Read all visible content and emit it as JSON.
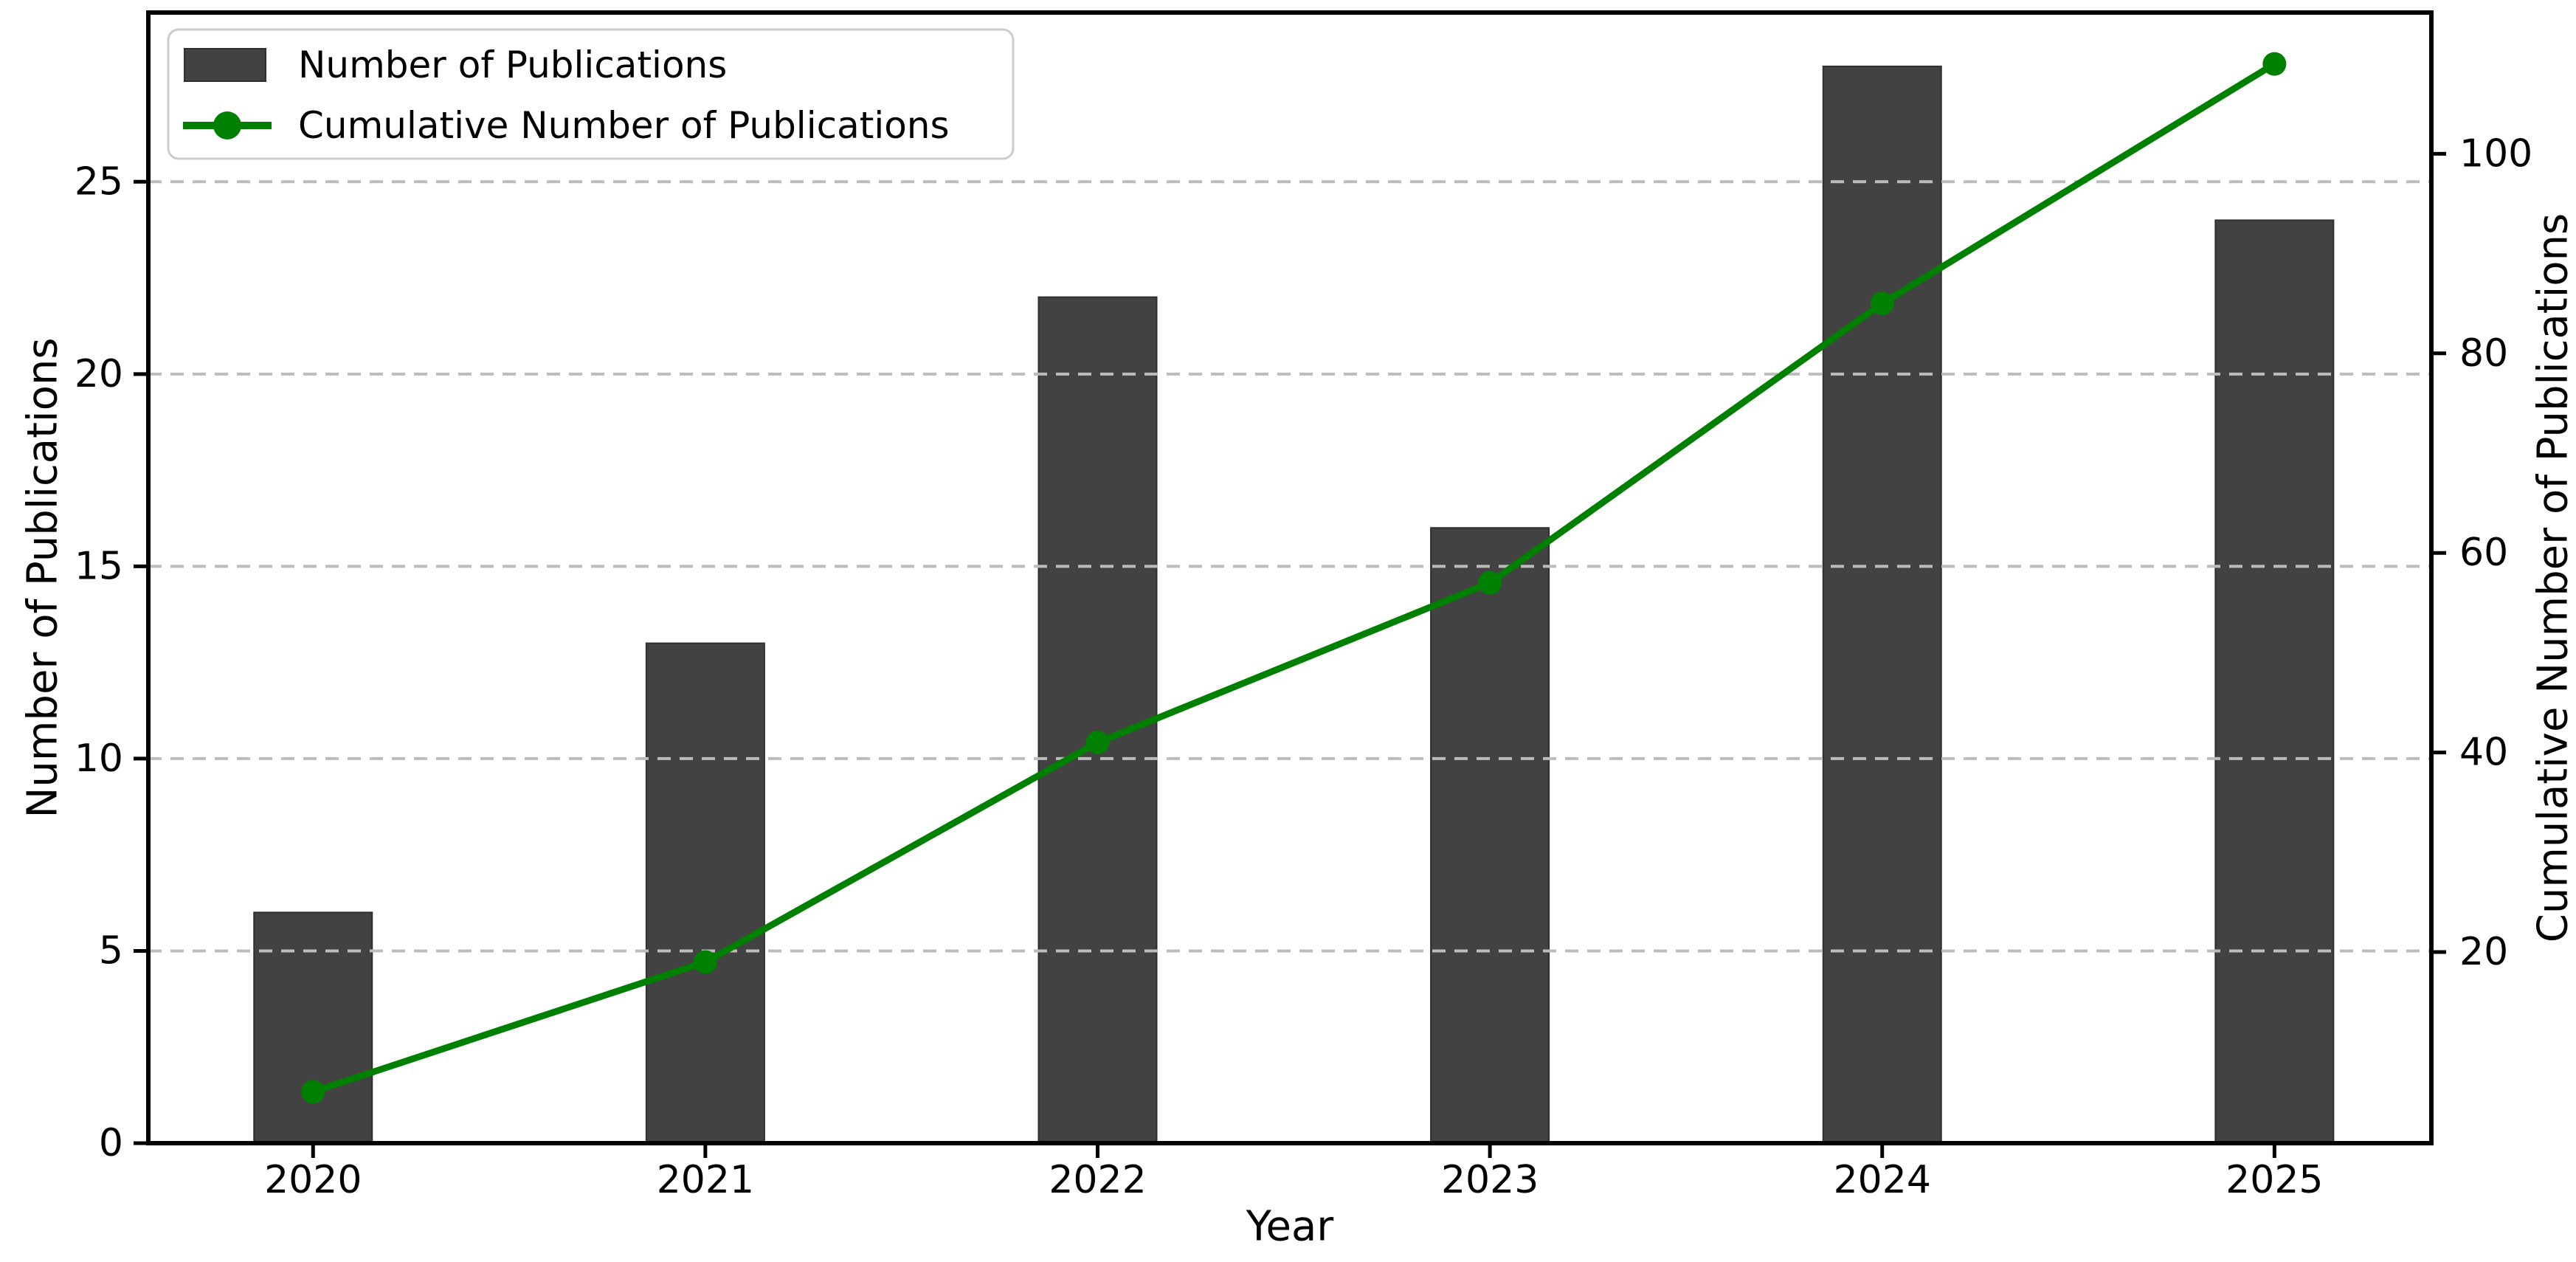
{
  "chart_data": {
    "type": "bar+line",
    "title": "",
    "categories": [
      "2020",
      "2021",
      "2022",
      "2023",
      "2024",
      "2025"
    ],
    "series": [
      {
        "name": "Number of Publications",
        "type": "bar",
        "axis": "left",
        "color": "#424242",
        "edge_color": "#2f2f2f",
        "values": [
          6,
          13,
          22,
          16,
          28,
          24
        ]
      },
      {
        "name": "Cumulative Number of Publications",
        "type": "line",
        "axis": "right",
        "color": "#008000",
        "marker": "circle",
        "values": [
          6,
          19,
          41,
          57,
          85,
          109
        ]
      }
    ],
    "xlabel": "Year",
    "left_axis": {
      "label": "Number of Publications",
      "ticks": [
        0,
        5,
        10,
        15,
        20,
        25
      ],
      "lim": [
        0,
        29.4
      ]
    },
    "right_axis": {
      "label": "Cumulative Number of Publications",
      "ticks": [
        20,
        40,
        60,
        80,
        100
      ],
      "lim": [
        0.85,
        114.15
      ]
    },
    "xlim": [
      -0.42,
      5.4
    ],
    "grid": {
      "show": true,
      "axis": "y",
      "linestyle": "dashed",
      "color": "#bcbcbc"
    },
    "legend": {
      "location": "upper left"
    },
    "colors": {
      "background": "#ffffff",
      "text": "#000000",
      "frame": "#000000",
      "legend_border": "#cccccc",
      "legend_background": "#ffffff"
    }
  }
}
